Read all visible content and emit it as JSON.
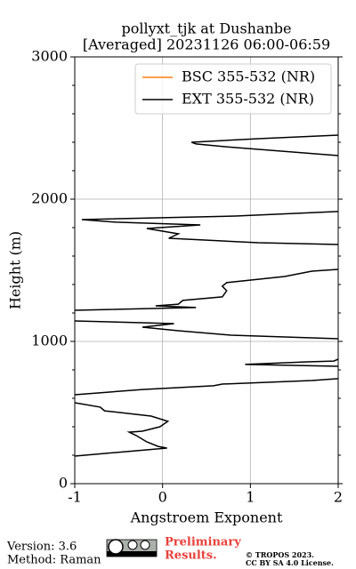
{
  "chart_data": {
    "type": "line",
    "title": [
      "pollyxt_tjk at Dushanbe",
      "[Averaged] 20231126 06:00-06:59"
    ],
    "xlabel": "Angstroem Exponent",
    "ylabel": "Height (m)",
    "y": [
      194,
      250,
      262,
      294,
      338,
      362,
      369,
      400,
      438,
      475,
      512,
      538,
      569,
      null,
      625,
      662,
      688,
      700,
      725,
      738,
      null,
      825,
      838,
      856,
      862,
      875,
      null,
      1019,
      1044,
      1075,
      1100,
      1125,
      1144,
      null,
      1219,
      1238,
      1250,
      1262,
      1288,
      1313,
      1356,
      1388,
      1413,
      1456,
      1494,
      1506,
      null,
      1681,
      1694,
      1725,
      1756,
      1794,
      1819,
      1838,
      1856,
      1881,
      1913,
      null,
      2306,
      2369,
      2388,
      2400,
      2425,
      2450
    ],
    "series": [
      {
        "name": "BSC 355-532 (NR)",
        "color": "#ff7f0e"
      },
      {
        "name": "EXT 355-532 (NR)",
        "color": "#000000",
        "values": [
          -1.0,
          0.05,
          -0.05,
          -0.18,
          -0.3,
          -0.38,
          -0.23,
          -0.03,
          0.06,
          -0.13,
          -0.66,
          -0.71,
          -1.0,
          null,
          -1.0,
          -0.23,
          0.58,
          0.68,
          1.7,
          2.0,
          null,
          2.0,
          0.94,
          1.65,
          1.95,
          2.0,
          null,
          2.0,
          0.78,
          0.18,
          -0.23,
          0.13,
          -1.0,
          null,
          -1.0,
          0.38,
          -0.08,
          0.18,
          0.23,
          0.68,
          0.73,
          0.68,
          0.73,
          1.39,
          1.7,
          2.0,
          null,
          2.0,
          1.09,
          0.07,
          0.18,
          -0.18,
          0.43,
          -0.53,
          -0.92,
          0.83,
          2.0,
          null,
          2.0,
          0.71,
          0.38,
          0.33,
          1.09,
          2.0
        ]
      }
    ],
    "xlim": [
      -1,
      2
    ],
    "xticks": [
      -1,
      0,
      1,
      2
    ],
    "ylim": [
      0,
      3000
    ],
    "yticks": [
      0,
      1000,
      2000,
      3000
    ],
    "yminorticks": [
      200,
      400,
      600,
      800,
      1200,
      1400,
      1600,
      1800,
      2200,
      2400,
      2600,
      2800
    ],
    "grid": true,
    "legend": "upper right"
  },
  "footer": {
    "version": "Version: 3.6",
    "method": "Method: Raman",
    "preliminary": [
      "Preliminary",
      "Results."
    ],
    "license": [
      "© TROPOS 2023.",
      "CC BY SA 4.0 License."
    ]
  }
}
